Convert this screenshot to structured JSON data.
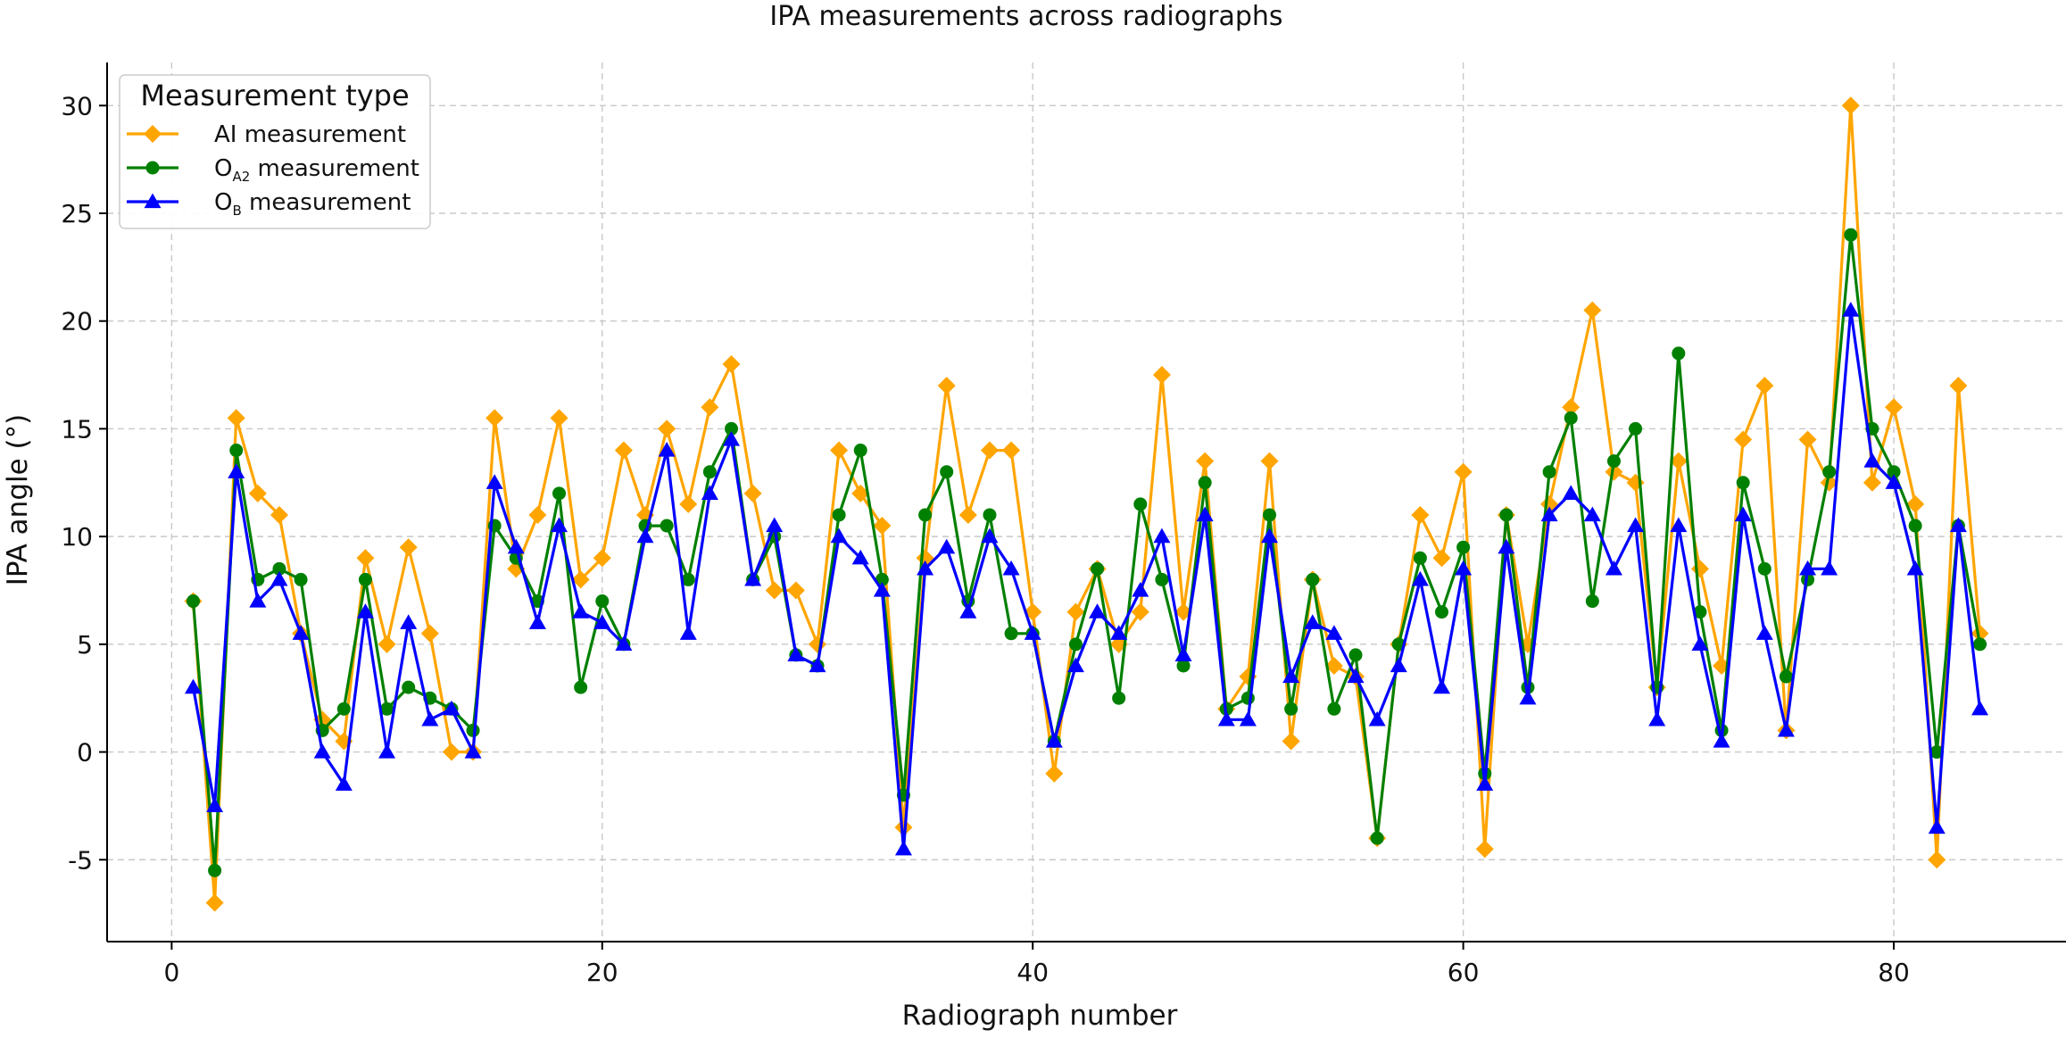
{
  "chart_data": {
    "type": "line",
    "title": "IPA measurements across radiographs",
    "xlabel": "Radiograph number",
    "ylabel": "IPA angle (°)",
    "xlim": [
      -3,
      88
    ],
    "ylim": [
      -8.8,
      32
    ],
    "xticks": [
      0,
      20,
      40,
      60,
      80
    ],
    "yticks": [
      -5,
      0,
      5,
      10,
      15,
      20,
      25,
      30
    ],
    "grid": true,
    "legend": {
      "title": "Measurement type",
      "placement": "top-left"
    },
    "x": [
      1,
      2,
      3,
      4,
      5,
      6,
      7,
      8,
      9,
      10,
      11,
      12,
      13,
      14,
      15,
      16,
      17,
      18,
      19,
      20,
      21,
      22,
      23,
      24,
      25,
      26,
      27,
      28,
      29,
      30,
      31,
      32,
      33,
      34,
      35,
      36,
      37,
      38,
      39,
      40,
      41,
      42,
      43,
      44,
      45,
      46,
      47,
      48,
      49,
      50,
      51,
      52,
      53,
      54,
      55,
      56,
      57,
      58,
      59,
      60,
      61,
      62,
      63,
      64,
      65,
      66,
      67,
      68,
      69,
      70,
      71,
      72,
      73,
      74,
      75,
      76,
      77,
      78,
      79,
      80,
      81,
      82,
      83,
      84
    ],
    "series": [
      {
        "name": "AI measurement",
        "name_main": "AI measurement",
        "name_sub": "",
        "name_rest": "",
        "color": "#FFA500",
        "marker": "diamond",
        "values": [
          7,
          -7,
          15.5,
          12,
          11,
          5.5,
          1.5,
          0.5,
          9,
          5,
          9.5,
          5.5,
          0,
          0,
          15.5,
          8.5,
          11,
          15.5,
          8,
          9,
          14,
          11,
          15,
          11.5,
          16,
          18,
          12,
          7.5,
          7.5,
          5,
          14,
          12,
          10.5,
          -3.5,
          9,
          17,
          11,
          14,
          14,
          6.5,
          -1,
          6.5,
          8.5,
          5,
          6.5,
          17.5,
          6.5,
          13.5,
          2,
          3.5,
          13.5,
          0.5,
          8,
          4,
          3.5,
          -4,
          5,
          11,
          9,
          13,
          -4.5,
          11,
          5,
          11.5,
          16,
          20.5,
          13,
          12.5,
          3,
          13.5,
          8.5,
          4,
          14.5,
          17,
          1,
          14.5,
          12.5,
          30,
          12.5,
          16,
          11.5,
          -5,
          17,
          5.5
        ]
      },
      {
        "name": "OA2 measurement",
        "name_main": "O",
        "name_sub": "A2",
        "name_rest": " measurement",
        "color": "#008000",
        "marker": "circle",
        "values": [
          7,
          -5.5,
          14,
          8,
          8.5,
          8,
          1,
          2,
          8,
          2,
          3,
          2.5,
          2,
          1,
          10.5,
          9,
          7,
          12,
          3,
          7,
          5,
          10.5,
          10.5,
          8,
          13,
          15,
          8,
          10,
          4.5,
          4,
          11,
          14,
          8,
          -2,
          11,
          13,
          7,
          11,
          5.5,
          5.5,
          0.5,
          5,
          8.5,
          2.5,
          11.5,
          8,
          4,
          12.5,
          2,
          2.5,
          11,
          2,
          8,
          2,
          4.5,
          -4,
          5,
          9,
          6.5,
          9.5,
          -1,
          11,
          3,
          13,
          15.5,
          7,
          13.5,
          15,
          3,
          18.5,
          6.5,
          1,
          12.5,
          8.5,
          3.5,
          8,
          13,
          24,
          15,
          13,
          10.5,
          0,
          10.5,
          5
        ]
      },
      {
        "name": "OB measurement",
        "name_main": "O",
        "name_sub": "B",
        "name_rest": " measurement",
        "color": "#0000FF",
        "marker": "triangle",
        "values": [
          3,
          -2.5,
          13,
          7,
          8,
          5.5,
          0,
          -1.5,
          6.5,
          0,
          6,
          1.5,
          2,
          0,
          12.5,
          9.5,
          6,
          10.5,
          6.5,
          6,
          5,
          10,
          14,
          5.5,
          12,
          14.5,
          8,
          10.5,
          4.5,
          4,
          10,
          9,
          7.5,
          -4.5,
          8.5,
          9.5,
          6.5,
          10,
          8.5,
          5.5,
          0.5,
          4,
          6.5,
          5.5,
          7.5,
          10,
          4.5,
          11,
          1.5,
          1.5,
          10,
          3.5,
          6,
          5.5,
          3.5,
          1.5,
          4,
          8,
          3,
          8.5,
          -1.5,
          9.5,
          2.5,
          11,
          12,
          11,
          8.5,
          10.5,
          1.5,
          10.5,
          5,
          0.5,
          11,
          5.5,
          1,
          8.5,
          8.5,
          20.5,
          13.5,
          12.5,
          8.5,
          -3.5,
          10.5,
          2
        ]
      }
    ]
  }
}
